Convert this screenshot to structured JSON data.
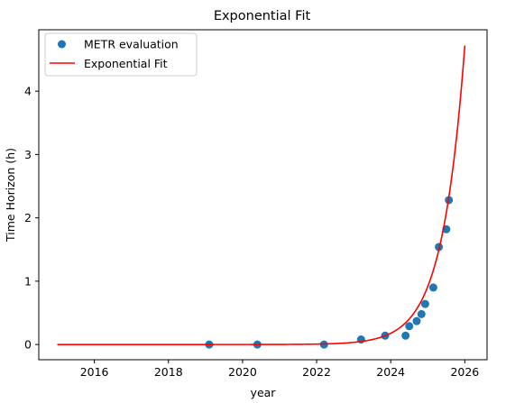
{
  "chart_data": {
    "type": "scatter",
    "title": "Exponential Fit",
    "xlabel": "year",
    "ylabel": "Time Horizon (h)",
    "xlim": [
      2014.5,
      2026.6
    ],
    "ylim": [
      -0.24,
      4.97
    ],
    "xticks": [
      2016,
      2018,
      2020,
      2022,
      2024,
      2026
    ],
    "yticks": [
      0,
      1,
      2,
      3,
      4
    ],
    "legend": {
      "position": "top-left",
      "entries": [
        "METR evaluation",
        "Exponential Fit"
      ]
    },
    "series": [
      {
        "name": "METR evaluation",
        "kind": "scatter",
        "color": "#1f77b4",
        "x": [
          2019.1,
          2020.4,
          2022.2,
          2023.2,
          2023.85,
          2024.4,
          2024.5,
          2024.7,
          2024.83,
          2024.93,
          2025.15,
          2025.3,
          2025.5,
          2025.57
        ],
        "y": [
          0.0,
          0.0,
          0.0,
          0.08,
          0.14,
          0.14,
          0.29,
          0.37,
          0.48,
          0.64,
          0.9,
          1.54,
          1.82,
          2.28
        ]
      },
      {
        "name": "Exponential Fit",
        "kind": "line",
        "color": "#ff0000",
        "model": {
          "form": "y = a * exp(b * (x - 2026))",
          "a": 4.72,
          "b": 1.64
        },
        "x_start": 2015.0,
        "x_end": 2026.0
      }
    ],
    "grid": false
  }
}
